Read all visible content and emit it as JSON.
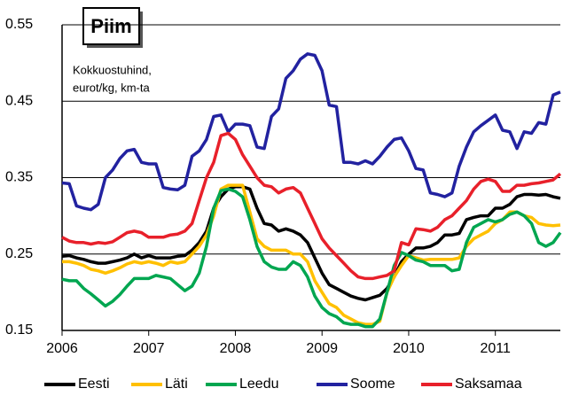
{
  "chart_data": {
    "type": "line",
    "title": "Piim",
    "subtitle": [
      "Kokkuostuhind,",
      "eurot/kg, km-ta"
    ],
    "x": [
      2006,
      2006.083,
      2006.167,
      2006.25,
      2006.333,
      2006.417,
      2006.5,
      2006.583,
      2006.667,
      2006.75,
      2006.833,
      2006.917,
      2007,
      2007.083,
      2007.167,
      2007.25,
      2007.333,
      2007.417,
      2007.5,
      2007.583,
      2007.667,
      2007.75,
      2007.833,
      2007.917,
      2008,
      2008.083,
      2008.167,
      2008.25,
      2008.333,
      2008.417,
      2008.5,
      2008.583,
      2008.667,
      2008.75,
      2008.833,
      2008.917,
      2009,
      2009.083,
      2009.167,
      2009.25,
      2009.333,
      2009.417,
      2009.5,
      2009.583,
      2009.667,
      2009.75,
      2009.833,
      2009.917,
      2010,
      2010.083,
      2010.167,
      2010.25,
      2010.333,
      2010.417,
      2010.5,
      2010.583,
      2010.667,
      2010.75,
      2010.833,
      2010.917,
      2011,
      2011.083,
      2011.167,
      2011.25,
      2011.333,
      2011.417,
      2011.5,
      2011.583,
      2011.667,
      2011.75
    ],
    "xlim": [
      2006,
      2011.75
    ],
    "xticks": [
      2006,
      2007,
      2008,
      2009,
      2010,
      2011
    ],
    "ylim": [
      0.15,
      0.55
    ],
    "yticks": [
      0.15,
      0.25,
      0.35,
      0.45,
      0.55
    ],
    "grid": true,
    "legend": "bottom",
    "series": [
      {
        "name": "Eesti",
        "color": "#000000",
        "values": [
          0.247,
          0.248,
          0.245,
          0.243,
          0.24,
          0.238,
          0.238,
          0.24,
          0.242,
          0.245,
          0.25,
          0.245,
          0.248,
          0.245,
          0.245,
          0.245,
          0.247,
          0.248,
          0.255,
          0.265,
          0.28,
          0.31,
          0.325,
          0.335,
          0.338,
          0.338,
          0.335,
          0.31,
          0.29,
          0.288,
          0.28,
          0.283,
          0.28,
          0.275,
          0.265,
          0.245,
          0.225,
          0.21,
          0.205,
          0.2,
          0.195,
          0.192,
          0.19,
          0.193,
          0.196,
          0.205,
          0.22,
          0.24,
          0.25,
          0.258,
          0.258,
          0.26,
          0.265,
          0.275,
          0.275,
          0.277,
          0.295,
          0.298,
          0.3,
          0.3,
          0.31,
          0.31,
          0.315,
          0.325,
          0.328,
          0.328,
          0.327,
          0.328,
          0.325,
          0.323
        ]
      },
      {
        "name": "Läti",
        "color": "#ffc000",
        "values": [
          0.24,
          0.24,
          0.238,
          0.235,
          0.23,
          0.228,
          0.225,
          0.228,
          0.232,
          0.237,
          0.24,
          0.238,
          0.24,
          0.238,
          0.235,
          0.24,
          0.238,
          0.24,
          0.25,
          0.26,
          0.275,
          0.3,
          0.335,
          0.34,
          0.34,
          0.34,
          0.305,
          0.27,
          0.26,
          0.255,
          0.255,
          0.255,
          0.25,
          0.25,
          0.24,
          0.215,
          0.2,
          0.185,
          0.18,
          0.17,
          0.165,
          0.16,
          0.158,
          0.158,
          0.162,
          0.2,
          0.22,
          0.235,
          0.248,
          0.245,
          0.242,
          0.243,
          0.243,
          0.243,
          0.243,
          0.245,
          0.26,
          0.27,
          0.275,
          0.28,
          0.29,
          0.295,
          0.305,
          0.305,
          0.3,
          0.298,
          0.29,
          0.288,
          0.287,
          0.288
        ]
      },
      {
        "name": "Leedu",
        "color": "#00a650",
        "values": [
          0.217,
          0.215,
          0.215,
          0.205,
          0.198,
          0.19,
          0.182,
          0.188,
          0.197,
          0.208,
          0.218,
          0.218,
          0.218,
          0.222,
          0.22,
          0.218,
          0.21,
          0.202,
          0.208,
          0.225,
          0.26,
          0.31,
          0.333,
          0.335,
          0.332,
          0.325,
          0.295,
          0.26,
          0.24,
          0.233,
          0.23,
          0.23,
          0.24,
          0.235,
          0.22,
          0.195,
          0.18,
          0.172,
          0.168,
          0.16,
          0.158,
          0.158,
          0.155,
          0.155,
          0.165,
          0.2,
          0.235,
          0.252,
          0.248,
          0.242,
          0.24,
          0.235,
          0.235,
          0.235,
          0.228,
          0.23,
          0.265,
          0.285,
          0.29,
          0.295,
          0.292,
          0.295,
          0.302,
          0.305,
          0.3,
          0.29,
          0.265,
          0.26,
          0.265,
          0.278
        ]
      },
      {
        "name": "Soome",
        "color": "#2222a0",
        "values": [
          0.343,
          0.342,
          0.313,
          0.31,
          0.308,
          0.315,
          0.35,
          0.36,
          0.375,
          0.385,
          0.387,
          0.37,
          0.368,
          0.368,
          0.337,
          0.335,
          0.334,
          0.34,
          0.378,
          0.385,
          0.4,
          0.43,
          0.432,
          0.41,
          0.42,
          0.42,
          0.418,
          0.39,
          0.388,
          0.43,
          0.44,
          0.48,
          0.49,
          0.505,
          0.512,
          0.51,
          0.49,
          0.445,
          0.443,
          0.37,
          0.37,
          0.368,
          0.372,
          0.368,
          0.378,
          0.39,
          0.4,
          0.402,
          0.385,
          0.362,
          0.36,
          0.33,
          0.328,
          0.325,
          0.33,
          0.365,
          0.39,
          0.41,
          0.418,
          0.425,
          0.432,
          0.412,
          0.41,
          0.388,
          0.41,
          0.408,
          0.422,
          0.42,
          0.458,
          0.462
        ]
      },
      {
        "name": "Saksamaa",
        "color": "#e8202a",
        "values": [
          0.272,
          0.267,
          0.265,
          0.265,
          0.263,
          0.265,
          0.264,
          0.266,
          0.272,
          0.278,
          0.28,
          0.278,
          0.272,
          0.272,
          0.272,
          0.275,
          0.276,
          0.28,
          0.29,
          0.32,
          0.35,
          0.37,
          0.405,
          0.408,
          0.4,
          0.38,
          0.365,
          0.35,
          0.34,
          0.338,
          0.33,
          0.335,
          0.337,
          0.33,
          0.31,
          0.29,
          0.27,
          0.258,
          0.248,
          0.238,
          0.228,
          0.22,
          0.218,
          0.218,
          0.22,
          0.222,
          0.228,
          0.265,
          0.262,
          0.283,
          0.282,
          0.28,
          0.285,
          0.295,
          0.3,
          0.31,
          0.32,
          0.335,
          0.345,
          0.348,
          0.345,
          0.332,
          0.332,
          0.34,
          0.34,
          0.342,
          0.343,
          0.345,
          0.347,
          0.355
        ]
      }
    ]
  }
}
